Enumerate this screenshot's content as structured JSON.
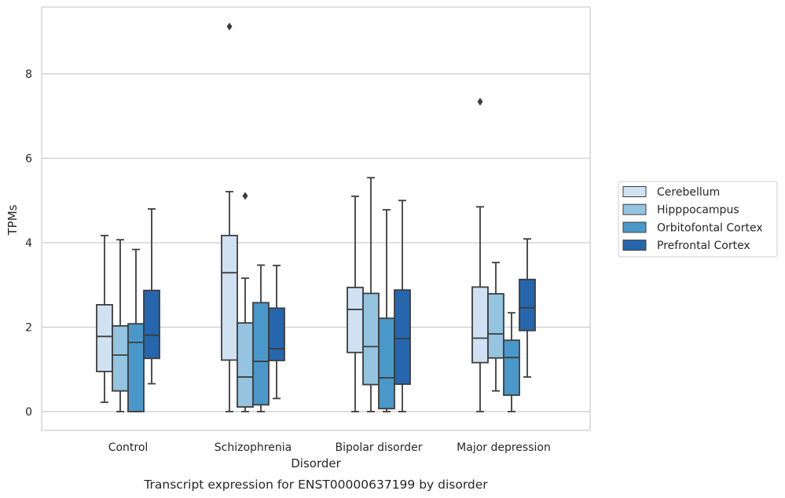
{
  "chart_data": {
    "type": "box",
    "title": "",
    "caption": "Transcript expression for ENST00000637199 by disorder",
    "xlabel": "Disorder",
    "ylabel": "TPMs",
    "ylim": [
      -0.45,
      9.6
    ],
    "yticks": [
      0,
      2,
      4,
      6,
      8
    ],
    "grid": true,
    "legend_position": "right",
    "categories": [
      "Control",
      "Schizophrenia",
      "Bipolar disorder",
      "Major depression"
    ],
    "series": [
      {
        "name": "Cerebellum",
        "color": "#d0e1f2",
        "boxes": [
          {
            "whisker_low": 0.22,
            "q1": 0.95,
            "median": 1.78,
            "q3": 2.53,
            "whisker_high": 4.17,
            "outliers": []
          },
          {
            "whisker_low": 0.0,
            "q1": 1.22,
            "median": 3.29,
            "q3": 4.17,
            "whisker_high": 5.21,
            "outliers": [
              9.12
            ]
          },
          {
            "whisker_low": 0.0,
            "q1": 1.4,
            "median": 2.42,
            "q3": 2.94,
            "whisker_high": 5.1,
            "outliers": []
          },
          {
            "whisker_low": 0.0,
            "q1": 1.16,
            "median": 1.74,
            "q3": 2.95,
            "whisker_high": 4.85,
            "outliers": [
              7.34
            ]
          }
        ]
      },
      {
        "name": "Hipppocampus",
        "color": "#94c4df",
        "boxes": [
          {
            "whisker_low": 0.0,
            "q1": 0.49,
            "median": 1.34,
            "q3": 2.03,
            "whisker_high": 4.07,
            "outliers": []
          },
          {
            "whisker_low": 0.0,
            "q1": 0.11,
            "median": 0.82,
            "q3": 2.1,
            "whisker_high": 3.16,
            "outliers": [
              5.11
            ]
          },
          {
            "whisker_low": 0.0,
            "q1": 0.64,
            "median": 1.54,
            "q3": 2.8,
            "whisker_high": 5.54,
            "outliers": []
          },
          {
            "whisker_low": 0.49,
            "q1": 1.27,
            "median": 1.84,
            "q3": 2.79,
            "whisker_high": 3.53,
            "outliers": []
          }
        ]
      },
      {
        "name": "Orbitofontal Cortex",
        "color": "#4a98c9",
        "boxes": [
          {
            "whisker_low": 0.0,
            "q1": 0.0,
            "median": 1.64,
            "q3": 2.08,
            "whisker_high": 3.84,
            "outliers": []
          },
          {
            "whisker_low": 0.0,
            "q1": 0.16,
            "median": 1.19,
            "q3": 2.58,
            "whisker_high": 3.47,
            "outliers": []
          },
          {
            "whisker_low": 0.0,
            "q1": 0.07,
            "median": 0.8,
            "q3": 2.21,
            "whisker_high": 4.78,
            "outliers": []
          },
          {
            "whisker_low": 0.0,
            "q1": 0.39,
            "median": 1.28,
            "q3": 1.69,
            "whisker_high": 2.34,
            "outliers": []
          }
        ]
      },
      {
        "name": "Prefrontal Cortex",
        "color": "#2666ac",
        "boxes": [
          {
            "whisker_low": 0.66,
            "q1": 1.26,
            "median": 1.81,
            "q3": 2.87,
            "whisker_high": 4.8,
            "outliers": []
          },
          {
            "whisker_low": 0.31,
            "q1": 1.21,
            "median": 1.49,
            "q3": 2.45,
            "whisker_high": 3.46,
            "outliers": []
          },
          {
            "whisker_low": 0.0,
            "q1": 0.65,
            "median": 1.73,
            "q3": 2.88,
            "whisker_high": 5.0,
            "outliers": []
          },
          {
            "whisker_low": 0.82,
            "q1": 1.92,
            "median": 2.46,
            "q3": 3.13,
            "whisker_high": 4.09,
            "outliers": []
          }
        ]
      }
    ]
  }
}
